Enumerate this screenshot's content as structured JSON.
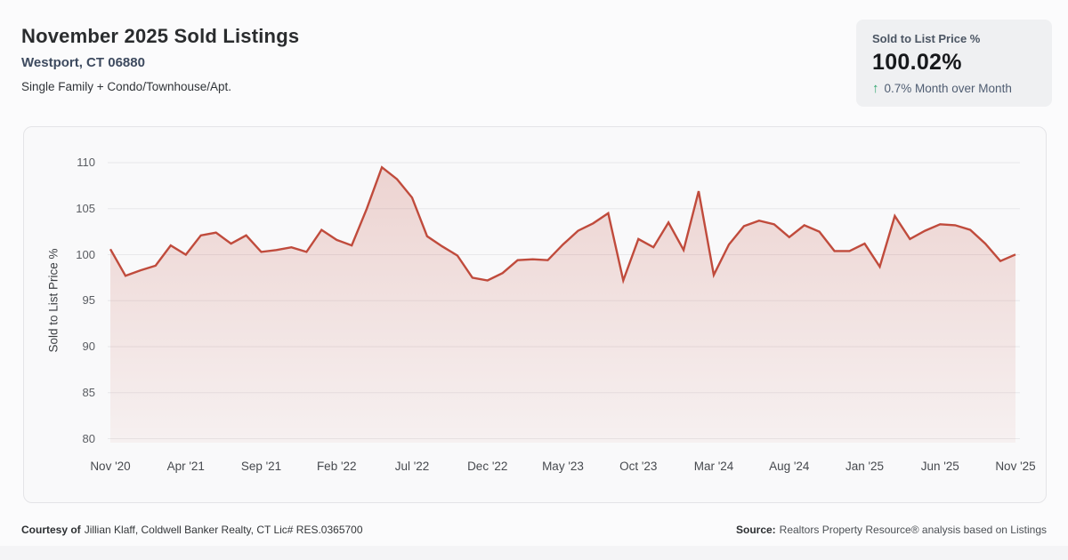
{
  "header": {
    "title": "November 2025 Sold Listings",
    "location": "Westport, CT 06880",
    "property_types": "Single Family + Condo/Townhouse/Apt."
  },
  "stat_card": {
    "label": "Sold to List Price %",
    "value": "100.02%",
    "change_arrow": "↑",
    "change_text": "0.7% Month over Month"
  },
  "footer": {
    "courtesy_label": "Courtesy of",
    "courtesy_text": "Jillian Klaff, Coldwell Banker Realty, CT Lic# RES.0365700",
    "source_label": "Source:",
    "source_text": "Realtors Property Resource® analysis based on Listings"
  },
  "colors": {
    "line": "#c04b3c",
    "fill_top": "rgba(192,75,60,0.22)",
    "fill_bottom": "rgba(192,75,60,0.05)",
    "gridline": "#e8e8ea",
    "accent_green": "#2ca46c"
  },
  "chart_data": {
    "type": "area",
    "title": "November 2025 Sold Listings",
    "xlabel": "",
    "ylabel": "Sold to List Price %",
    "ylim": [
      80,
      110
    ],
    "yticks": [
      110,
      105,
      100,
      95,
      90,
      85,
      80
    ],
    "grid": "horizontal",
    "legend": "none",
    "x_tick_labels": [
      "Nov '20",
      "Apr '21",
      "Sep '21",
      "Feb '22",
      "Jul '22",
      "Dec '22",
      "May '23",
      "Oct '23",
      "Mar '24",
      "Aug '24",
      "Jan '25",
      "Jun '25",
      "Nov '25"
    ],
    "x_tick_step": 5,
    "x": [
      "Nov '20",
      "Dec '20",
      "Jan '21",
      "Feb '21",
      "Mar '21",
      "Apr '21",
      "May '21",
      "Jun '21",
      "Jul '21",
      "Aug '21",
      "Sep '21",
      "Oct '21",
      "Nov '21",
      "Dec '21",
      "Jan '22",
      "Feb '22",
      "Mar '22",
      "Apr '22",
      "May '22",
      "Jun '22",
      "Jul '22",
      "Aug '22",
      "Sep '22",
      "Oct '22",
      "Nov '22",
      "Dec '22",
      "Jan '23",
      "Feb '23",
      "Mar '23",
      "Apr '23",
      "May '23",
      "Jun '23",
      "Jul '23",
      "Aug '23",
      "Sep '23",
      "Oct '23",
      "Nov '23",
      "Dec '23",
      "Jan '24",
      "Feb '24",
      "Mar '24",
      "Apr '24",
      "May '24",
      "Jun '24",
      "Jul '24",
      "Aug '24",
      "Sep '24",
      "Oct '24",
      "Nov '24",
      "Dec '24",
      "Jan '25",
      "Feb '25",
      "Mar '25",
      "Apr '25",
      "May '25",
      "Jun '25",
      "Jul '25",
      "Aug '25",
      "Sep '25",
      "Oct '25",
      "Nov '25"
    ],
    "values": [
      100.6,
      97.7,
      98.3,
      98.8,
      101.0,
      100.0,
      102.1,
      102.4,
      101.2,
      102.1,
      100.3,
      100.5,
      100.8,
      100.3,
      102.7,
      101.6,
      101.0,
      105.0,
      109.5,
      108.2,
      106.2,
      102.0,
      100.9,
      99.9,
      97.5,
      97.2,
      98.0,
      99.4,
      99.5,
      99.4,
      101.1,
      102.6,
      103.4,
      104.5,
      97.2,
      101.7,
      100.8,
      103.5,
      100.5,
      106.9,
      97.8,
      101.1,
      103.1,
      103.7,
      103.3,
      101.9,
      103.2,
      102.5,
      100.4,
      100.4,
      101.2,
      98.7,
      104.2,
      101.7,
      102.6,
      103.3,
      103.2,
      102.7,
      101.2,
      99.3,
      100.02
    ]
  }
}
